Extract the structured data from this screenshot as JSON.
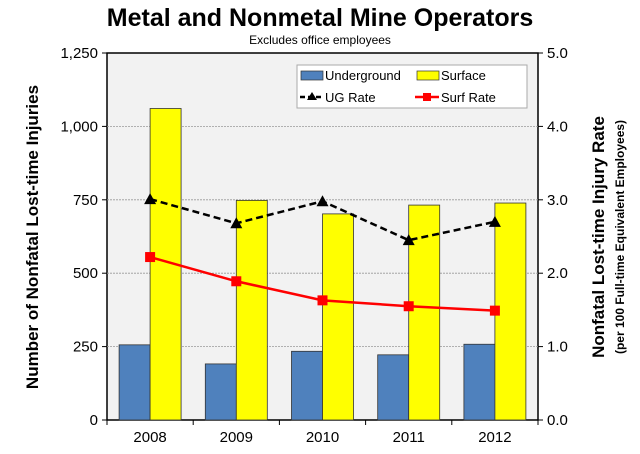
{
  "chart_data": {
    "type": "bar+line",
    "title": "Metal and Nonmetal Mine Operators",
    "subtitle": "Excludes  office employees",
    "categories": [
      "2008",
      "2009",
      "2010",
      "2011",
      "2012"
    ],
    "ylabel": "Number of Nonfatal Lost-time Injuries",
    "y2label": "Nonfatal Lost-time Injury Rate",
    "y2label_sub": "(per 100 Full-time Equivalent Employees)",
    "ylim": [
      0,
      1250
    ],
    "y2lim": [
      0,
      5.0
    ],
    "yticks": [
      "0",
      "250",
      "500",
      "750",
      "1,000",
      "1,250"
    ],
    "y2ticks": [
      "0.0",
      "1.0",
      "2.0",
      "3.0",
      "4.0",
      "5.0"
    ],
    "grid": true,
    "legend_placement": "top-right",
    "series": [
      {
        "name": "Underground",
        "kind": "bar",
        "axis": "left",
        "color": "#4f81bd",
        "values": [
          256,
          191,
          234,
          222,
          258
        ]
      },
      {
        "name": "Surface",
        "kind": "bar",
        "axis": "left",
        "color": "#ffff00",
        "values": [
          1061,
          748,
          702,
          732,
          739
        ]
      },
      {
        "name": "UG Rate",
        "kind": "line",
        "axis": "right",
        "color": "#000000",
        "marker": "triangle",
        "dash": true,
        "values": [
          3.01,
          2.68,
          2.98,
          2.45,
          2.7
        ]
      },
      {
        "name": "Surf Rate",
        "kind": "line",
        "axis": "right",
        "color": "#ff0000",
        "marker": "square",
        "dash": false,
        "values": [
          2.22,
          1.89,
          1.63,
          1.55,
          1.49
        ]
      }
    ]
  }
}
